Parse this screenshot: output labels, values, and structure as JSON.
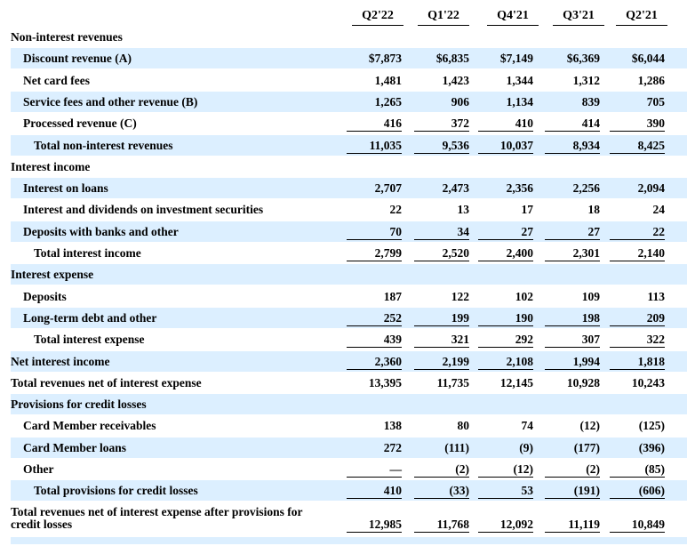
{
  "columns": [
    "Q2'22",
    "Q1'22",
    "Q4'21",
    "Q3'21",
    "Q2'21"
  ],
  "rows": [
    {
      "label": "Non-interest revenues",
      "indent": 0,
      "values": [
        "",
        "",
        "",
        "",
        ""
      ]
    },
    {
      "label": "Discount revenue (A)",
      "indent": 1,
      "values": [
        "$7,873",
        "$6,835",
        "$7,149",
        "$6,369",
        "$6,044"
      ]
    },
    {
      "label": "Net card fees",
      "indent": 1,
      "values": [
        "1,481",
        "1,423",
        "1,344",
        "1,312",
        "1,286"
      ]
    },
    {
      "label": "Service fees and other revenue (B)",
      "indent": 1,
      "values": [
        "1,265",
        "906",
        "1,134",
        "839",
        "705"
      ]
    },
    {
      "label": "Processed revenue (C)",
      "indent": 1,
      "values": [
        "416",
        "372",
        "410",
        "414",
        "390"
      ],
      "underline": true
    },
    {
      "label": "Total non-interest revenues",
      "indent": 2,
      "values": [
        "11,035",
        "9,536",
        "10,037",
        "8,934",
        "8,425"
      ],
      "underline": true
    },
    {
      "label": "Interest income",
      "indent": 0,
      "values": [
        "",
        "",
        "",
        "",
        ""
      ]
    },
    {
      "label": "Interest on loans",
      "indent": 1,
      "values": [
        "2,707",
        "2,473",
        "2,356",
        "2,256",
        "2,094"
      ]
    },
    {
      "label": "Interest and dividends on investment securities",
      "indent": 1,
      "values": [
        "22",
        "13",
        "17",
        "18",
        "24"
      ]
    },
    {
      "label": "Deposits with banks and other",
      "indent": 1,
      "values": [
        "70",
        "34",
        "27",
        "27",
        "22"
      ],
      "underline": true
    },
    {
      "label": "Total interest income",
      "indent": 2,
      "values": [
        "2,799",
        "2,520",
        "2,400",
        "2,301",
        "2,140"
      ],
      "underline": true
    },
    {
      "label": "Interest expense",
      "indent": 0,
      "values": [
        "",
        "",
        "",
        "",
        ""
      ]
    },
    {
      "label": "Deposits",
      "indent": 1,
      "values": [
        "187",
        "122",
        "102",
        "109",
        "113"
      ]
    },
    {
      "label": "Long-term debt and other",
      "indent": 1,
      "values": [
        "252",
        "199",
        "190",
        "198",
        "209"
      ],
      "underline": true
    },
    {
      "label": "Total interest expense",
      "indent": 2,
      "values": [
        "439",
        "321",
        "292",
        "307",
        "322"
      ],
      "underline": true
    },
    {
      "label": "Net interest income",
      "indent": 0,
      "values": [
        "2,360",
        "2,199",
        "2,108",
        "1,994",
        "1,818"
      ],
      "underline": true
    },
    {
      "label": "Total revenues net of interest expense",
      "indent": 0,
      "values": [
        "13,395",
        "11,735",
        "12,145",
        "10,928",
        "10,243"
      ]
    },
    {
      "label": "Provisions for credit losses",
      "indent": 0,
      "values": [
        "",
        "",
        "",
        "",
        ""
      ]
    },
    {
      "label": "Card Member receivables",
      "indent": 1,
      "values": [
        "138",
        "80",
        "74",
        "(12)",
        "(125)"
      ]
    },
    {
      "label": "Card Member loans",
      "indent": 1,
      "values": [
        "272",
        "(111)",
        "(9)",
        "(177)",
        "(396)"
      ]
    },
    {
      "label": "Other",
      "indent": 1,
      "values": [
        "—",
        "(2)",
        "(12)",
        "(2)",
        "(85)"
      ],
      "underline": true
    },
    {
      "label": "Total provisions for credit losses",
      "indent": 2,
      "values": [
        "410",
        "(33)",
        "53",
        "(191)",
        "(606)"
      ],
      "underline": true
    },
    {
      "label": "Total revenues net of interest expense after provisions for credit losses",
      "indent": 0,
      "values": [
        "12,985",
        "11,768",
        "12,092",
        "11,119",
        "10,849"
      ],
      "tall": true,
      "underline": true
    }
  ]
}
